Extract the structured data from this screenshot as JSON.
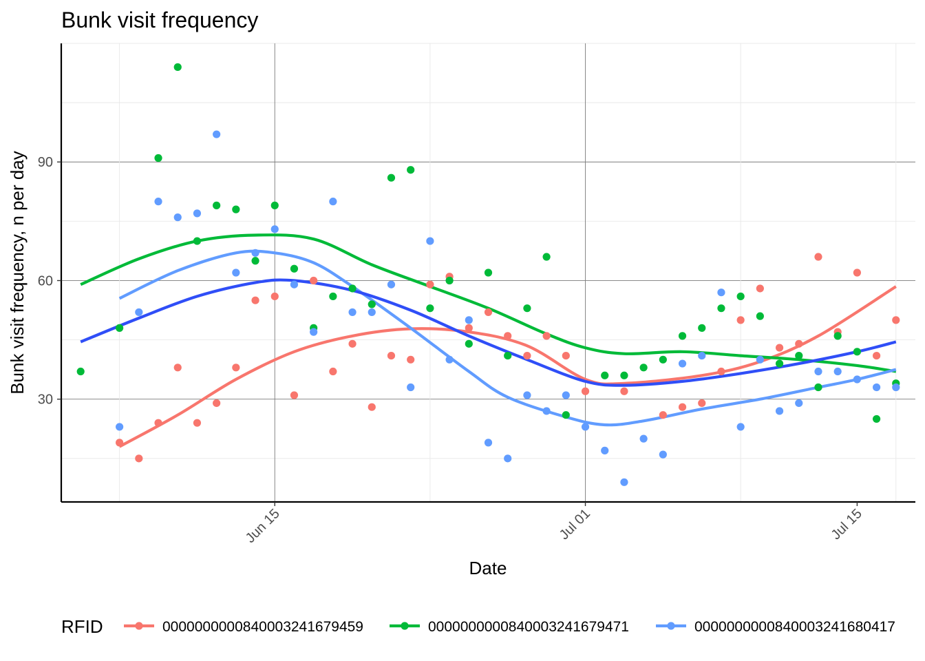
{
  "chart_data": {
    "type": "scatter",
    "title": "Bunk visit frequency",
    "xlabel": "Date",
    "ylabel": "Bunk visit frequency, n per day",
    "x_type": "date",
    "xlim": [
      "2024-06-04",
      "2024-07-18"
    ],
    "ylim": [
      4,
      120
    ],
    "y_ticks": [
      30,
      60,
      90
    ],
    "x_ticks": [
      {
        "date": "2024-06-15",
        "label": "Jun 15"
      },
      {
        "date": "2024-07-01",
        "label": "Jul 01"
      },
      {
        "date": "2024-07-15",
        "label": "Jul 15"
      }
    ],
    "grid": true,
    "legend": {
      "title": "RFID",
      "position": "bottom"
    },
    "series": [
      {
        "name": "0000000000840003241679459",
        "color": "#F8766D",
        "points": [
          [
            "2024-06-07",
            19
          ],
          [
            "2024-06-08",
            15
          ],
          [
            "2024-06-09",
            24
          ],
          [
            "2024-06-10",
            38
          ],
          [
            "2024-06-11",
            24
          ],
          [
            "2024-06-12",
            29
          ],
          [
            "2024-06-13",
            38
          ],
          [
            "2024-06-14",
            55
          ],
          [
            "2024-06-15",
            56
          ],
          [
            "2024-06-16",
            31
          ],
          [
            "2024-06-17",
            60
          ],
          [
            "2024-06-18",
            37
          ],
          [
            "2024-06-19",
            44
          ],
          [
            "2024-06-20",
            28
          ],
          [
            "2024-06-21",
            41
          ],
          [
            "2024-06-22",
            40
          ],
          [
            "2024-06-23",
            59
          ],
          [
            "2024-06-24",
            61
          ],
          [
            "2024-06-25",
            48
          ],
          [
            "2024-06-26",
            52
          ],
          [
            "2024-06-27",
            46
          ],
          [
            "2024-06-28",
            41
          ],
          [
            "2024-06-29",
            46
          ],
          [
            "2024-06-30",
            41
          ],
          [
            "2024-07-01",
            32
          ],
          [
            "2024-07-03",
            32
          ],
          [
            "2024-07-05",
            26
          ],
          [
            "2024-07-06",
            28
          ],
          [
            "2024-07-07",
            29
          ],
          [
            "2024-07-08",
            37
          ],
          [
            "2024-07-09",
            50
          ],
          [
            "2024-07-10",
            58
          ],
          [
            "2024-07-11",
            43
          ],
          [
            "2024-07-12",
            44
          ],
          [
            "2024-07-13",
            66
          ],
          [
            "2024-07-14",
            47
          ],
          [
            "2024-07-15",
            62
          ],
          [
            "2024-07-16",
            41
          ],
          [
            "2024-07-17",
            50
          ]
        ],
        "smooth": [
          [
            "2024-06-07",
            18
          ],
          [
            "2024-06-10",
            26
          ],
          [
            "2024-06-13",
            35
          ],
          [
            "2024-06-16",
            42
          ],
          [
            "2024-06-19",
            46
          ],
          [
            "2024-06-22",
            47.8
          ],
          [
            "2024-06-25",
            47
          ],
          [
            "2024-06-28",
            43.5
          ],
          [
            "2024-07-01",
            35
          ],
          [
            "2024-07-03",
            34
          ],
          [
            "2024-07-07",
            36
          ],
          [
            "2024-07-10",
            39.5
          ],
          [
            "2024-07-13",
            46
          ],
          [
            "2024-07-17",
            58.5
          ]
        ]
      },
      {
        "name": "0000000000840003241679471",
        "color": "#00BA38",
        "points": [
          [
            "2024-06-05",
            37
          ],
          [
            "2024-06-07",
            48
          ],
          [
            "2024-06-09",
            91
          ],
          [
            "2024-06-10",
            114
          ],
          [
            "2024-06-11",
            70
          ],
          [
            "2024-06-12",
            79
          ],
          [
            "2024-06-13",
            78
          ],
          [
            "2024-06-14",
            65
          ],
          [
            "2024-06-15",
            79
          ],
          [
            "2024-06-16",
            63
          ],
          [
            "2024-06-17",
            48
          ],
          [
            "2024-06-18",
            56
          ],
          [
            "2024-06-19",
            58
          ],
          [
            "2024-06-20",
            54
          ],
          [
            "2024-06-21",
            86
          ],
          [
            "2024-06-22",
            88
          ],
          [
            "2024-06-23",
            53
          ],
          [
            "2024-06-24",
            60
          ],
          [
            "2024-06-25",
            44
          ],
          [
            "2024-06-26",
            62
          ],
          [
            "2024-06-27",
            41
          ],
          [
            "2024-06-28",
            53
          ],
          [
            "2024-06-29",
            66
          ],
          [
            "2024-06-30",
            26
          ],
          [
            "2024-07-02",
            36
          ],
          [
            "2024-07-03",
            36
          ],
          [
            "2024-07-04",
            38
          ],
          [
            "2024-07-05",
            40
          ],
          [
            "2024-07-06",
            46
          ],
          [
            "2024-07-07",
            48
          ],
          [
            "2024-07-08",
            53
          ],
          [
            "2024-07-09",
            56
          ],
          [
            "2024-07-10",
            51
          ],
          [
            "2024-07-11",
            39
          ],
          [
            "2024-07-12",
            41
          ],
          [
            "2024-07-13",
            33
          ],
          [
            "2024-07-14",
            46
          ],
          [
            "2024-07-15",
            42
          ],
          [
            "2024-07-16",
            25
          ],
          [
            "2024-07-17",
            34
          ]
        ],
        "smooth": [
          [
            "2024-06-05",
            59
          ],
          [
            "2024-06-08",
            65.5
          ],
          [
            "2024-06-11",
            70
          ],
          [
            "2024-06-14",
            71.5
          ],
          [
            "2024-06-17",
            70.5
          ],
          [
            "2024-06-20",
            64
          ],
          [
            "2024-06-23",
            58.5
          ],
          [
            "2024-06-26",
            53
          ],
          [
            "2024-06-29",
            46.5
          ],
          [
            "2024-07-01",
            43
          ],
          [
            "2024-07-03",
            41.5
          ],
          [
            "2024-07-06",
            42
          ],
          [
            "2024-07-09",
            41
          ],
          [
            "2024-07-12",
            40
          ],
          [
            "2024-07-15",
            38.5
          ],
          [
            "2024-07-17",
            37
          ]
        ]
      },
      {
        "name": "0000000000840003241680417",
        "color": "#619CFF",
        "points": [
          [
            "2024-06-07",
            23
          ],
          [
            "2024-06-08",
            52
          ],
          [
            "2024-06-09",
            80
          ],
          [
            "2024-06-10",
            76
          ],
          [
            "2024-06-11",
            77
          ],
          [
            "2024-06-12",
            97
          ],
          [
            "2024-06-13",
            62
          ],
          [
            "2024-06-14",
            67
          ],
          [
            "2024-06-15",
            73
          ],
          [
            "2024-06-16",
            59
          ],
          [
            "2024-06-17",
            47
          ],
          [
            "2024-06-18",
            80
          ],
          [
            "2024-06-19",
            52
          ],
          [
            "2024-06-20",
            52
          ],
          [
            "2024-06-21",
            59
          ],
          [
            "2024-06-22",
            33
          ],
          [
            "2024-06-23",
            70
          ],
          [
            "2024-06-24",
            40
          ],
          [
            "2024-06-25",
            50
          ],
          [
            "2024-06-26",
            19
          ],
          [
            "2024-06-27",
            15
          ],
          [
            "2024-06-28",
            31
          ],
          [
            "2024-06-29",
            27
          ],
          [
            "2024-06-30",
            31
          ],
          [
            "2024-07-01",
            23
          ],
          [
            "2024-07-02",
            17
          ],
          [
            "2024-07-03",
            9
          ],
          [
            "2024-07-04",
            20
          ],
          [
            "2024-07-05",
            16
          ],
          [
            "2024-07-06",
            39
          ],
          [
            "2024-07-07",
            41
          ],
          [
            "2024-07-08",
            57
          ],
          [
            "2024-07-09",
            23
          ],
          [
            "2024-07-10",
            40
          ],
          [
            "2024-07-11",
            27
          ],
          [
            "2024-07-12",
            29
          ],
          [
            "2024-07-13",
            37
          ],
          [
            "2024-07-14",
            37
          ],
          [
            "2024-07-15",
            35
          ],
          [
            "2024-07-16",
            33
          ],
          [
            "2024-07-17",
            33
          ]
        ],
        "smooth": [
          [
            "2024-06-07",
            55.5
          ],
          [
            "2024-06-10",
            62.5
          ],
          [
            "2024-06-13",
            67
          ],
          [
            "2024-06-15",
            67
          ],
          [
            "2024-06-17",
            64.5
          ],
          [
            "2024-06-19",
            58.5
          ],
          [
            "2024-06-22",
            48
          ],
          [
            "2024-06-25",
            37
          ],
          [
            "2024-06-27",
            30.5
          ],
          [
            "2024-06-30",
            25.5
          ],
          [
            "2024-07-02",
            23.5
          ],
          [
            "2024-07-04",
            24.5
          ],
          [
            "2024-07-07",
            27.5
          ],
          [
            "2024-07-10",
            30
          ],
          [
            "2024-07-13",
            33
          ],
          [
            "2024-07-15",
            35
          ],
          [
            "2024-07-17",
            37.5
          ]
        ]
      }
    ],
    "combined_smooth": {
      "color": "#2F4EF7",
      "points": [
        [
          "2024-06-05",
          44.5
        ],
        [
          "2024-06-08",
          50.5
        ],
        [
          "2024-06-11",
          56
        ],
        [
          "2024-06-14",
          59.5
        ],
        [
          "2024-06-16",
          60
        ],
        [
          "2024-06-19",
          57.5
        ],
        [
          "2024-06-22",
          52.5
        ],
        [
          "2024-06-25",
          46
        ],
        [
          "2024-06-28",
          40
        ],
        [
          "2024-07-01",
          34.5
        ],
        [
          "2024-07-03",
          33.5
        ],
        [
          "2024-07-06",
          34.5
        ],
        [
          "2024-07-09",
          36.5
        ],
        [
          "2024-07-12",
          39
        ],
        [
          "2024-07-15",
          42
        ],
        [
          "2024-07-17",
          44.5
        ]
      ]
    }
  }
}
